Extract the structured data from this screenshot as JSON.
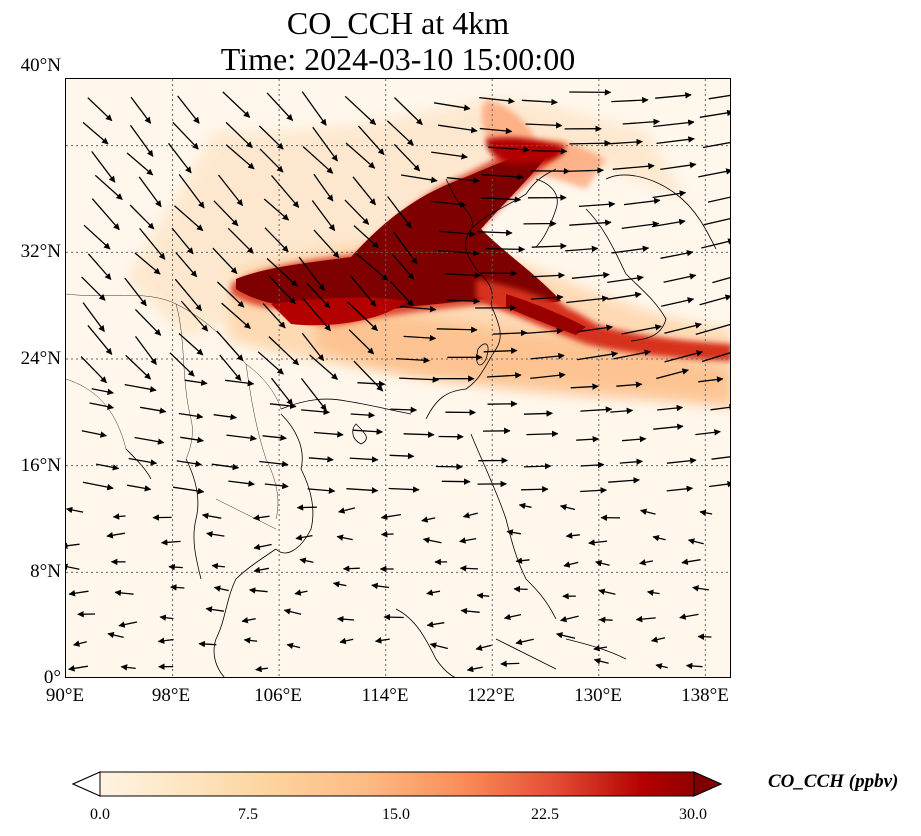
{
  "title": {
    "line1": "CO_CCH at 4km",
    "line2": "Time: 2024-03-10 15:00:00"
  },
  "axes": {
    "lon_range": [
      90,
      140
    ],
    "lat_range": [
      0,
      45
    ],
    "lat_labels": [
      "40°N",
      "32°N",
      "24°N",
      "16°N",
      "8°N",
      "0°"
    ],
    "lon_labels": [
      "90°E",
      "98°E",
      "106°E",
      "114°E",
      "122°E",
      "130°E",
      "138°E"
    ],
    "gridlines": true,
    "gridline_style": "dotted"
  },
  "colorbar": {
    "label": "CO_CCH (ppbv)",
    "ticks": [
      "0.0",
      "7.5",
      "15.0",
      "22.5",
      "30.0"
    ],
    "min": 0,
    "max": 30,
    "colormap": "OrRd",
    "extend": "both"
  },
  "colors": {
    "low": "#fff7ec",
    "mid": "#fdbb84",
    "high": "#d7301f",
    "max": "#7f0000",
    "arrow": "#000000",
    "coast": "#000000"
  },
  "layers": [
    "CO_CCH concentration field",
    "wind vectors",
    "coastlines",
    "country borders"
  ]
}
